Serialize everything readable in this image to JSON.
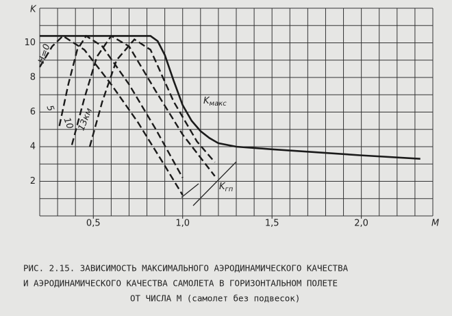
{
  "chart_data": {
    "type": "line",
    "xlabel": "M",
    "ylabel": "K",
    "xlim": [
      0.2,
      2.4
    ],
    "ylim": [
      0,
      12
    ],
    "xticks": [
      {
        "value": 0.5,
        "label": "0,5"
      },
      {
        "value": 1.0,
        "label": "1,0"
      },
      {
        "value": 1.5,
        "label": "1,5"
      },
      {
        "value": 2.0,
        "label": "2,0"
      }
    ],
    "yticks": [
      2,
      4,
      6,
      8,
      10
    ],
    "x_gridlines": [
      0.2,
      0.3,
      0.4,
      0.5,
      0.6,
      0.7,
      0.8,
      0.9,
      1.0,
      1.1,
      1.2,
      1.3,
      1.4,
      1.5,
      1.6,
      1.7,
      1.8,
      1.9,
      2.0,
      2.1,
      2.2,
      2.3,
      2.4
    ],
    "y_gridlines": [
      0,
      1,
      2,
      3,
      4,
      5,
      6,
      7,
      8,
      9,
      10,
      11,
      12
    ],
    "grid": true,
    "series": [
      {
        "style": "solid",
        "color": "#1a1a1a",
        "x": [
          0.2,
          0.5,
          0.82,
          0.86,
          0.9,
          0.95,
          1.0,
          1.05,
          1.1,
          1.15,
          1.2,
          1.3,
          1.5,
          2.0,
          2.33
        ],
        "values": [
          10.4,
          10.4,
          10.4,
          10.1,
          9.3,
          7.8,
          6.4,
          5.5,
          4.9,
          4.5,
          4.2,
          4.0,
          3.85,
          3.5,
          3.3
        ]
      },
      {
        "style": "dashed",
        "color": "#1a1a1a",
        "x": [
          0.2,
          0.27,
          0.33,
          0.45,
          0.6,
          0.75,
          0.9,
          1.0
        ],
        "values": [
          8.6,
          9.8,
          10.4,
          9.6,
          7.6,
          5.4,
          2.9,
          1.2
        ]
      },
      {
        "style": "dashed",
        "color": "#1a1a1a",
        "x": [
          0.31,
          0.36,
          0.41,
          0.46,
          0.55,
          0.7,
          0.85,
          1.0
        ],
        "values": [
          5.2,
          7.6,
          9.6,
          10.4,
          9.8,
          7.6,
          5.0,
          2.2
        ]
      },
      {
        "style": "dashed",
        "color": "#1a1a1a",
        "x": [
          0.38,
          0.45,
          0.52,
          0.6,
          0.7,
          0.85,
          1.0,
          1.18
        ],
        "values": [
          4.1,
          6.8,
          9.2,
          10.4,
          9.8,
          7.2,
          4.7,
          2.3
        ]
      },
      {
        "style": "dashed",
        "color": "#1a1a1a",
        "x": [
          0.48,
          0.55,
          0.63,
          0.73,
          0.82,
          0.95,
          1.08,
          1.18
        ],
        "values": [
          4.0,
          6.6,
          9.0,
          10.2,
          9.6,
          6.6,
          4.3,
          3.1
        ]
      }
    ],
    "annotations": [
      {
        "text": "H=0"
      },
      {
        "text": "5"
      },
      {
        "text": "10"
      },
      {
        "text": "13км"
      },
      {
        "text": "K",
        "sub": "макс"
      },
      {
        "text": "K",
        "sub": "гп"
      }
    ],
    "caption": [
      "РИС. 2.15. ЗАВИСИМОСТЬ МАКСИМАЛЬНОГО АЭРОДИНАМИЧЕСКОГО КАЧЕСТВА",
      "И АЭРОДИНАМИЧЕСКОГО КАЧЕСТВА САМОЛЕТА В ГОРИЗОНТАЛЬНОМ ПОЛЕТЕ",
      "ОТ ЧИСЛА М (самолет без подвесок)"
    ]
  }
}
